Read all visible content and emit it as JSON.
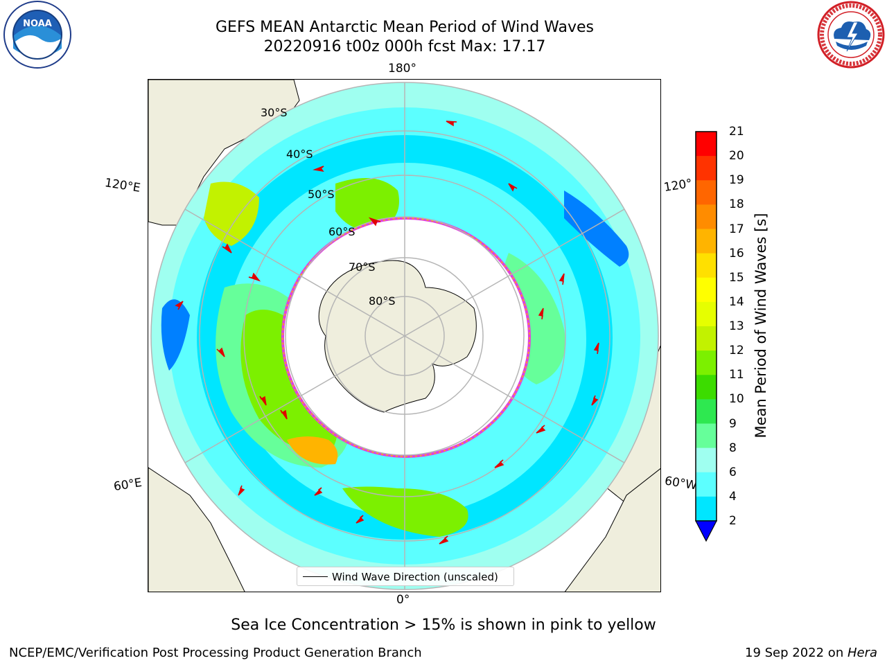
{
  "title": {
    "line1": "GEFS MEAN Antarctic Mean Period of Wind Waves",
    "line2": "20220916 t00z 000h fcst   Max: 17.17"
  },
  "logos": {
    "left": {
      "icon": "noaa-logo",
      "text": "NOAA"
    },
    "right": {
      "icon": "nws-logo"
    }
  },
  "map": {
    "projection": "south-polar-stereographic",
    "lon_labels": {
      "top": "180°",
      "bottom": "0°",
      "upper_left": "120°E",
      "upper_right": "120°",
      "lower_left": "60°E",
      "lower_right": "60°W"
    },
    "lat_labels": [
      "30°S",
      "40°S",
      "50°S",
      "60°S",
      "70°S",
      "80°S"
    ],
    "legend": "Wind Wave Direction (unscaled)",
    "colors": {
      "land": "#efeedd",
      "graticule": "#b5b5b5",
      "ice_edge": "#e040e0",
      "arrow": "#e00000"
    }
  },
  "colorbar": {
    "label": "Mean Period of Wind Waves [s]",
    "ticks": [
      "21",
      "20",
      "19",
      "18",
      "17",
      "16",
      "15",
      "14",
      "13",
      "12",
      "11",
      "10",
      "9",
      "8",
      "6",
      "4",
      "2"
    ],
    "colors": [
      "#ff0000",
      "#ff3300",
      "#ff6600",
      "#ff8c00",
      "#ffb400",
      "#ffe000",
      "#ffff00",
      "#e6ff00",
      "#c2f200",
      "#7cf000",
      "#3cdc00",
      "#2ee850",
      "#66ff9a",
      "#9ffff0",
      "#5cffff",
      "#00e6ff",
      "#0080ff",
      "#0000ff"
    ],
    "extend": "min"
  },
  "notes": {
    "sea_ice": "Sea Ice Concentration > 15% is shown in pink to yellow"
  },
  "footer": {
    "left": "NCEP/EMC/Verification Post Processing Product Generation Branch",
    "right_prefix": "19 Sep 2022 on ",
    "right_italic": "Hera"
  }
}
